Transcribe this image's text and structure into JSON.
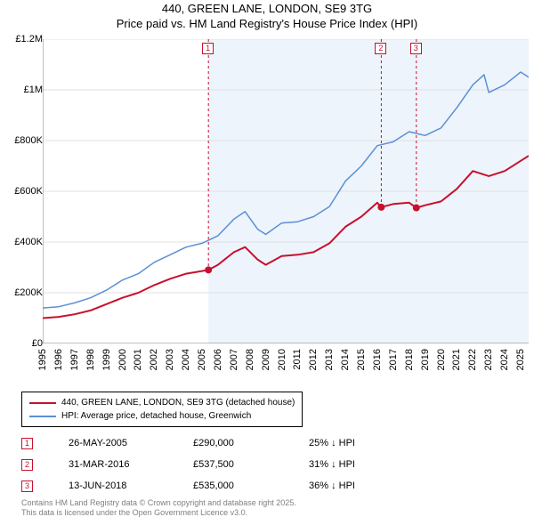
{
  "title": "440, GREEN LANE, LONDON, SE9 3TG",
  "subtitle": "Price paid vs. HM Land Registry's House Price Index (HPI)",
  "chart": {
    "type": "line",
    "background_color": "#ffffff",
    "plot_border_color": "#808080",
    "grid_color": "#e0e0e0",
    "title_fontsize": 13,
    "label_fontsize": 11,
    "shaded_region": {
      "x_start": 2005.4,
      "x_end": 2025.5,
      "fill": "#eef4fb"
    },
    "x": {
      "min": 1995,
      "max": 2025.5,
      "ticks": [
        1995,
        1996,
        1997,
        1998,
        1999,
        2000,
        2001,
        2002,
        2003,
        2004,
        2005,
        2006,
        2007,
        2008,
        2009,
        2010,
        2011,
        2012,
        2013,
        2014,
        2015,
        2016,
        2017,
        2018,
        2019,
        2020,
        2021,
        2022,
        2023,
        2024,
        2025
      ]
    },
    "y": {
      "min": 0,
      "max": 1200000,
      "ticks": [
        0,
        200000,
        400000,
        600000,
        800000,
        1000000,
        1200000
      ],
      "tick_labels": [
        "£0",
        "£200K",
        "£400K",
        "£600K",
        "£800K",
        "£1M",
        "£1.2M"
      ]
    },
    "series": [
      {
        "name": "440, GREEN LANE, LONDON, SE9 3TG (detached house)",
        "color": "#c8102e",
        "line_width": 2,
        "points": [
          [
            1995,
            100000
          ],
          [
            1996,
            105000
          ],
          [
            1997,
            115000
          ],
          [
            1998,
            130000
          ],
          [
            1999,
            155000
          ],
          [
            2000,
            180000
          ],
          [
            2001,
            200000
          ],
          [
            2002,
            230000
          ],
          [
            2003,
            255000
          ],
          [
            2004,
            275000
          ],
          [
            2005.4,
            290000
          ],
          [
            2006,
            310000
          ],
          [
            2007,
            360000
          ],
          [
            2007.7,
            380000
          ],
          [
            2008.5,
            330000
          ],
          [
            2009,
            310000
          ],
          [
            2010,
            345000
          ],
          [
            2011,
            350000
          ],
          [
            2012,
            360000
          ],
          [
            2013,
            395000
          ],
          [
            2014,
            460000
          ],
          [
            2015,
            500000
          ],
          [
            2016,
            555000
          ],
          [
            2016.25,
            537500
          ],
          [
            2017,
            550000
          ],
          [
            2018,
            555000
          ],
          [
            2018.45,
            535000
          ],
          [
            2019,
            545000
          ],
          [
            2020,
            560000
          ],
          [
            2021,
            610000
          ],
          [
            2022,
            680000
          ],
          [
            2023,
            660000
          ],
          [
            2024,
            680000
          ],
          [
            2025,
            720000
          ],
          [
            2025.5,
            740000
          ]
        ]
      },
      {
        "name": "HPI: Average price, detached house, Greenwich",
        "color": "#5b8fd6",
        "line_width": 1.5,
        "points": [
          [
            1995,
            140000
          ],
          [
            1996,
            145000
          ],
          [
            1997,
            160000
          ],
          [
            1998,
            180000
          ],
          [
            1999,
            210000
          ],
          [
            2000,
            250000
          ],
          [
            2001,
            275000
          ],
          [
            2002,
            320000
          ],
          [
            2003,
            350000
          ],
          [
            2004,
            380000
          ],
          [
            2005,
            395000
          ],
          [
            2006,
            425000
          ],
          [
            2007,
            490000
          ],
          [
            2007.7,
            520000
          ],
          [
            2008.5,
            450000
          ],
          [
            2009,
            430000
          ],
          [
            2010,
            475000
          ],
          [
            2011,
            480000
          ],
          [
            2012,
            500000
          ],
          [
            2013,
            540000
          ],
          [
            2014,
            640000
          ],
          [
            2015,
            700000
          ],
          [
            2016,
            780000
          ],
          [
            2017,
            795000
          ],
          [
            2018,
            835000
          ],
          [
            2019,
            820000
          ],
          [
            2020,
            850000
          ],
          [
            2021,
            930000
          ],
          [
            2022,
            1020000
          ],
          [
            2022.7,
            1060000
          ],
          [
            2023,
            990000
          ],
          [
            2024,
            1020000
          ],
          [
            2025,
            1070000
          ],
          [
            2025.5,
            1050000
          ]
        ]
      }
    ],
    "sale_markers": [
      {
        "n": "1",
        "x": 2005.4,
        "y": 290000,
        "color": "#c8102e"
      },
      {
        "n": "2",
        "x": 2016.25,
        "y": 537500,
        "color": "#c8102e"
      },
      {
        "n": "3",
        "x": 2018.45,
        "y": 535000,
        "color": "#c8102e"
      }
    ]
  },
  "legend": {
    "items": [
      {
        "color": "#c8102e",
        "label": "440, GREEN LANE, LONDON, SE9 3TG (detached house)"
      },
      {
        "color": "#5b8fd6",
        "label": "HPI: Average price, detached house, Greenwich"
      }
    ]
  },
  "transactions": [
    {
      "n": "1",
      "color": "#c8102e",
      "date": "26-MAY-2005",
      "price": "£290,000",
      "delta": "25% ↓ HPI"
    },
    {
      "n": "2",
      "color": "#c8102e",
      "date": "31-MAR-2016",
      "price": "£537,500",
      "delta": "31% ↓ HPI"
    },
    {
      "n": "3",
      "color": "#c8102e",
      "date": "13-JUN-2018",
      "price": "£535,000",
      "delta": "36% ↓ HPI"
    }
  ],
  "attribution": {
    "line1": "Contains HM Land Registry data © Crown copyright and database right 2025.",
    "line2": "This data is licensed under the Open Government Licence v3.0."
  },
  "table_cols": {
    "date_w": 140,
    "price_w": 130,
    "delta_w": 110
  }
}
